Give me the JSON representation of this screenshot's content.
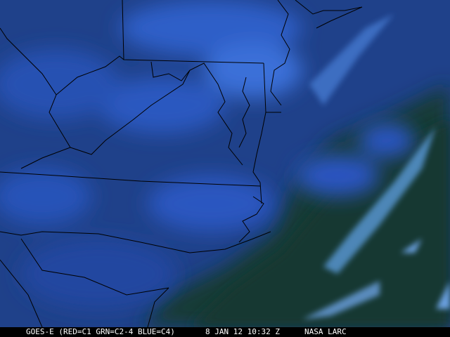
{
  "image": {
    "type": "satellite false-color composite",
    "colors": {
      "land_cloud": "#2a55b8",
      "clear_land": "#1d3f86",
      "ocean": "#173a35",
      "high_cloud": "#5a8fe0",
      "borders": "#000000"
    }
  },
  "caption": {
    "satellite": "GOES-E (RED=C1 GRN=C2-4 BLUE=C4)",
    "datetime": "8 JAN 12 10:32 Z",
    "credit": "NASA LARC"
  }
}
